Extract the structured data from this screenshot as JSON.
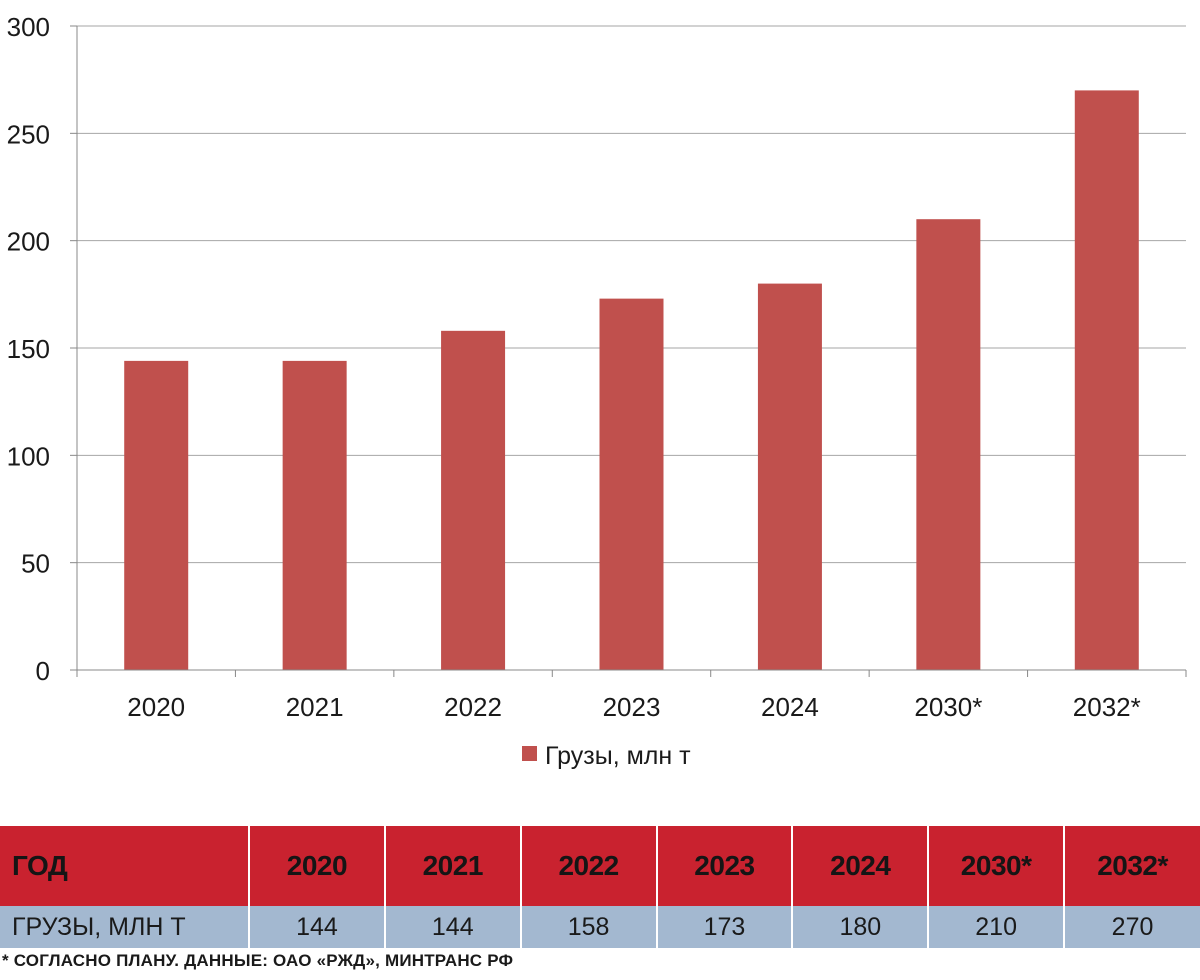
{
  "chart_data": {
    "type": "bar",
    "categories": [
      "2020",
      "2021",
      "2022",
      "2023",
      "2024",
      "2030*",
      "2032*"
    ],
    "series": [
      {
        "name": "Грузы, млн т",
        "values": [
          144,
          144,
          158,
          173,
          180,
          210,
          270
        ]
      }
    ],
    "ylim": [
      0,
      300
    ],
    "yticks": [
      0,
      50,
      100,
      150,
      200,
      250,
      300
    ],
    "grid": true,
    "legend_position": "bottom",
    "bar_color": "#c0504d"
  },
  "table": {
    "header_label": "ГОД",
    "row_label": "ГРУЗЫ, МЛН Т",
    "years": [
      "2020",
      "2021",
      "2022",
      "2023",
      "2024",
      "2030*",
      "2032*"
    ],
    "values": [
      "144",
      "144",
      "158",
      "173",
      "180",
      "210",
      "270"
    ],
    "header_color": "#c9222f",
    "row_color": "#a3b8d0"
  },
  "footnote": "* СОГЛАСНО ПЛАНУ. ДАННЫЕ: ОАО «РЖД», МИНТРАНС РФ"
}
